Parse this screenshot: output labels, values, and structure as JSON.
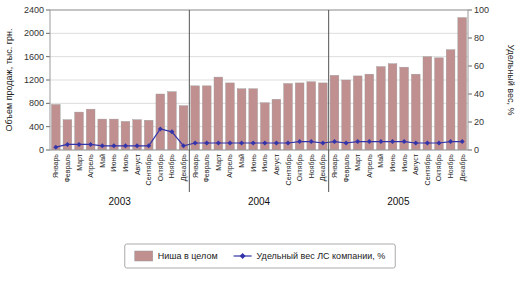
{
  "chart_data": {
    "type": "bar",
    "categories": [
      "Январь",
      "Февраль",
      "Март",
      "Апрель",
      "Май",
      "Июнь",
      "Июль",
      "Август",
      "Сентябрь",
      "Октябрь",
      "Ноябрь",
      "Декабрь",
      "Январь",
      "Февраль",
      "Март",
      "Апрель",
      "Май",
      "Июнь",
      "Июль",
      "Август",
      "Сентябрь",
      "Октябрь",
      "Ноябрь",
      "Декабрь",
      "Январь",
      "Февраль",
      "Март",
      "Апрель",
      "Май",
      "Июнь",
      "Июль",
      "Август",
      "Сентябрь",
      "Октябрь",
      "Ноябрь",
      "Декабрь"
    ],
    "series": [
      {
        "name": "Ниша в целом",
        "type": "bar",
        "color": "#c09090",
        "values": [
          780,
          520,
          650,
          700,
          530,
          530,
          490,
          520,
          510,
          960,
          1000,
          760,
          1100,
          1100,
          1250,
          1150,
          1050,
          1050,
          810,
          870,
          1140,
          1150,
          1170,
          1150,
          1280,
          1200,
          1270,
          1300,
          1430,
          1480,
          1420,
          1300,
          1600,
          1580,
          1720,
          2270
        ]
      },
      {
        "name": "Удельный вес ЛС компании, %",
        "type": "line",
        "axis": "y2",
        "color": "#3333aa",
        "marker": "diamond",
        "values": [
          2,
          4,
          4,
          4,
          3,
          3,
          3,
          3,
          3,
          15,
          13,
          3,
          5,
          5,
          5,
          5,
          5,
          5,
          5,
          5,
          5,
          6,
          6,
          5,
          6,
          5,
          6,
          6,
          6,
          6,
          6,
          5,
          5,
          5,
          6,
          6
        ]
      }
    ],
    "annotations": [
      "2003",
      "2004",
      "2005"
    ],
    "ylabel": "Объем продаж, тыс. грн.",
    "y2label": "Удельный вес, %",
    "ylim": [
      0,
      2400
    ],
    "yticks": [
      0,
      400,
      800,
      1200,
      1600,
      2000,
      2400
    ],
    "y2lim": [
      0,
      100
    ],
    "y2ticks": [
      0,
      20,
      40,
      60,
      80,
      100
    ],
    "grid": true,
    "legend": "bottom"
  }
}
